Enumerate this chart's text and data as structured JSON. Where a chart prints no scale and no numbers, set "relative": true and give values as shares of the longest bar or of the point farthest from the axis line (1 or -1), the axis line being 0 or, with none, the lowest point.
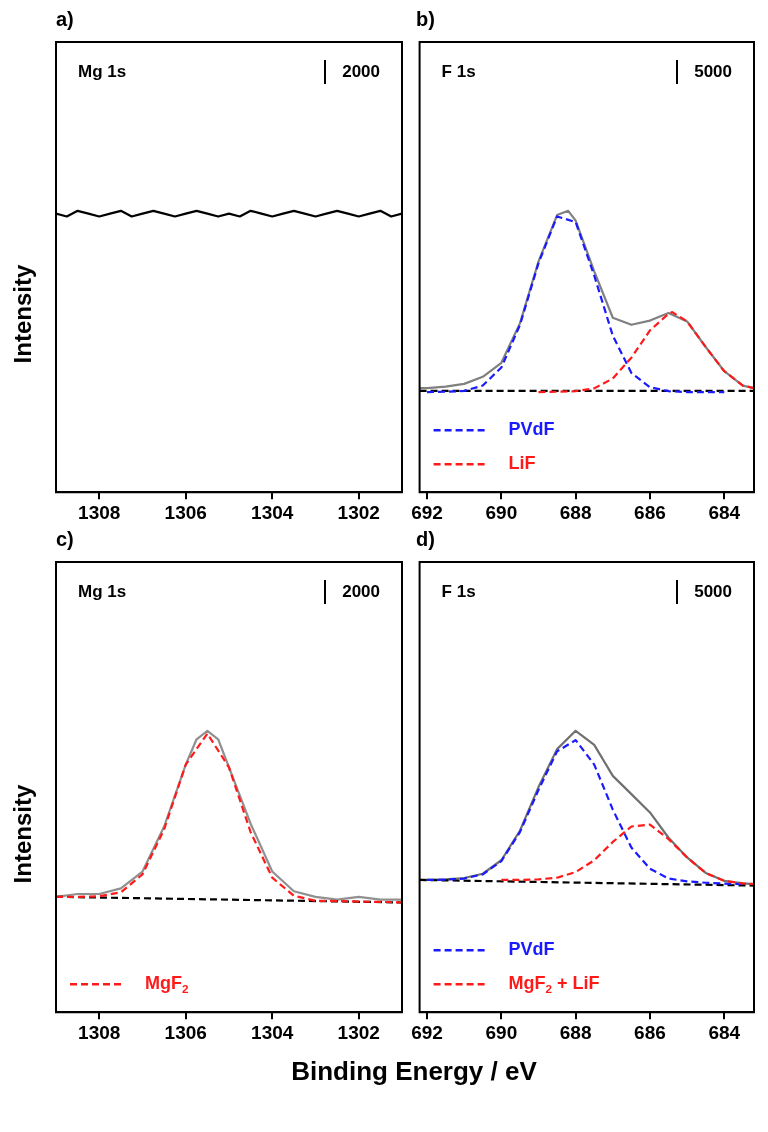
{
  "chart_data": [
    {
      "type": "line",
      "title": "a)",
      "ylabel": "Intensity",
      "annotations": [
        "Mg 1s",
        "2000"
      ],
      "relative": true,
      "xlim": [
        1309,
        1301
      ],
      "xticks": [
        1308,
        1306,
        1304,
        1302
      ],
      "line_style": "solid",
      "series": [
        {
          "color": "#000000",
          "x": [
            1309,
            1308.75,
            1308.5,
            1308.25,
            1308,
            1307.75,
            1307.5,
            1307.25,
            1307,
            1306.75,
            1306.5,
            1306.25,
            1306,
            1305.75,
            1305.5,
            1305.25,
            1305,
            1304.75,
            1304.5,
            1304.25,
            1304,
            1303.75,
            1303.5,
            1303.25,
            1303,
            1302.75,
            1302.5,
            1302.25,
            1302,
            1301.75,
            1301.5,
            1301.25,
            1301
          ],
          "values": [
            0.99,
            0.98,
            1.0,
            0.99,
            0.98,
            0.99,
            1.0,
            0.98,
            0.99,
            1.0,
            0.99,
            0.98,
            0.99,
            1.0,
            0.99,
            0.98,
            0.99,
            0.98,
            1.0,
            0.99,
            0.98,
            0.99,
            1.0,
            0.99,
            0.98,
            0.99,
            1.0,
            0.99,
            0.98,
            0.99,
            1.0,
            0.98,
            0.99
          ]
        }
      ]
    },
    {
      "type": "line",
      "title": "b)",
      "annotations": [
        "F 1s",
        "5000"
      ],
      "relative": true,
      "xlim": [
        692.2,
        683.2
      ],
      "xticks": [
        692,
        690,
        688,
        686,
        684
      ],
      "legend": "bottom left",
      "line_style": "solid",
      "series": [
        {
          "color": "#808080",
          "x": [
            692.2,
            692,
            691.5,
            691,
            690.5,
            690,
            689.5,
            689,
            688.5,
            688.2,
            688,
            687.5,
            687,
            686.5,
            686,
            685.5,
            685,
            684.5,
            684,
            683.5,
            683.2
          ],
          "values": [
            0.37,
            0.37,
            0.375,
            0.385,
            0.41,
            0.46,
            0.6,
            0.82,
            0.985,
            1.0,
            0.965,
            0.785,
            0.62,
            0.595,
            0.61,
            0.637,
            0.607,
            0.516,
            0.43,
            0.379,
            0.37
          ]
        },
        {
          "color": "#000000",
          "line_style": "dashed",
          "x": [
            692.2,
            683.2
          ],
          "values": [
            0.36,
            0.36
          ]
        },
        {
          "name": "PVdF",
          "color": "#1a1aff",
          "line_style": "dashed",
          "x": [
            692,
            691.5,
            691,
            690.5,
            690,
            689.5,
            689,
            688.5,
            688,
            687.5,
            687,
            686.5,
            686,
            685.5,
            685,
            684.5,
            684
          ],
          "values": [
            0.356,
            0.357,
            0.36,
            0.379,
            0.443,
            0.594,
            0.814,
            0.98,
            0.96,
            0.77,
            0.556,
            0.424,
            0.373,
            0.359,
            0.356,
            0.356,
            0.356
          ]
        },
        {
          "name": "LiF",
          "color": "#ff1a1a",
          "line_style": "dashed",
          "x": [
            689,
            688.5,
            688,
            687.5,
            687,
            686.5,
            686,
            685.5,
            685.4,
            685,
            684.5,
            684,
            683.5,
            683.2
          ],
          "values": [
            0.356,
            0.357,
            0.359,
            0.369,
            0.404,
            0.478,
            0.575,
            0.634,
            0.64,
            0.607,
            0.516,
            0.43,
            0.379,
            0.37
          ]
        }
      ]
    },
    {
      "type": "line",
      "title": "c)",
      "ylabel": "Intensity",
      "xlabel": "Binding Energy / eV",
      "annotations": [
        "Mg 1s",
        "2000"
      ],
      "relative": true,
      "xlim": [
        1309,
        1301
      ],
      "xticks": [
        1308,
        1306,
        1304,
        1302
      ],
      "legend": "bottom left",
      "line_style": "solid",
      "series": [
        {
          "color": "#909090",
          "x": [
            1309,
            1308.5,
            1308,
            1307.5,
            1307,
            1306.5,
            1306,
            1305.75,
            1305.5,
            1305.25,
            1305,
            1304.5,
            1304,
            1303.5,
            1303,
            1302.5,
            1302,
            1301.5,
            1301
          ],
          "values": [
            0.41,
            0.42,
            0.42,
            0.44,
            0.5,
            0.66,
            0.88,
            0.97,
            1.0,
            0.97,
            0.87,
            0.67,
            0.5,
            0.43,
            0.41,
            0.4,
            0.41,
            0.4,
            0.4
          ]
        },
        {
          "color": "#000000",
          "line_style": "dashed",
          "x": [
            1309,
            1301
          ],
          "values": [
            0.41,
            0.39
          ]
        },
        {
          "name": "MgF$_{2}$",
          "color": "#ff1a1a",
          "line_style": "dashed",
          "x": [
            1309,
            1308.5,
            1308,
            1307.5,
            1307,
            1306.5,
            1306,
            1305.5,
            1305,
            1304.5,
            1304,
            1303.5,
            1303,
            1302.5,
            1302,
            1301.5,
            1301
          ],
          "values": [
            0.41,
            0.41,
            0.412,
            0.426,
            0.49,
            0.65,
            0.88,
            0.99,
            0.87,
            0.64,
            0.478,
            0.414,
            0.396,
            0.395,
            0.393,
            0.392,
            0.39
          ]
        }
      ]
    },
    {
      "type": "line",
      "title": "d)",
      "annotations": [
        "F 1s",
        "5000"
      ],
      "relative": true,
      "xlim": [
        692.2,
        683.2
      ],
      "xticks": [
        692,
        690,
        688,
        686,
        684
      ],
      "legend": "bottom left",
      "line_style": "solid",
      "series": [
        {
          "color": "#707070",
          "x": [
            692.2,
            692,
            691.5,
            691,
            690.5,
            690,
            689.5,
            689,
            688.5,
            688,
            687.5,
            687,
            686.5,
            686,
            685.5,
            685,
            684.5,
            684,
            683.5,
            683.2
          ],
          "values": [
            0.47,
            0.47,
            0.472,
            0.477,
            0.492,
            0.54,
            0.645,
            0.8,
            0.935,
            1.0,
            0.95,
            0.84,
            0.775,
            0.71,
            0.62,
            0.55,
            0.495,
            0.467,
            0.458,
            0.455
          ]
        },
        {
          "color": "#000000",
          "line_style": "dashed",
          "x": [
            692.2,
            683.2
          ],
          "values": [
            0.47,
            0.45
          ]
        },
        {
          "name": "PVdF",
          "color": "#1a1aff",
          "line_style": "dashed",
          "x": [
            692,
            691.5,
            691,
            690.5,
            690,
            689.5,
            689,
            688.5,
            688,
            687.5,
            687,
            686.5,
            686,
            685.5,
            685,
            684.5,
            684,
            683.5
          ],
          "values": [
            0.47,
            0.471,
            0.475,
            0.49,
            0.537,
            0.64,
            0.79,
            0.927,
            0.967,
            0.88,
            0.72,
            0.585,
            0.51,
            0.475,
            0.465,
            0.46,
            0.457,
            0.455
          ]
        },
        {
          "name": "MgF$_{2}$ + LiF",
          "color": "#ff1a1a",
          "line_style": "dashed",
          "x": [
            690,
            689.5,
            689,
            688.5,
            688,
            687.5,
            687,
            686.5,
            686,
            685.5,
            685,
            684.5,
            684,
            683.5,
            683.2
          ],
          "values": [
            0.47,
            0.47,
            0.472,
            0.478,
            0.498,
            0.54,
            0.605,
            0.66,
            0.667,
            0.615,
            0.55,
            0.495,
            0.467,
            0.458,
            0.455
          ]
        }
      ]
    }
  ]
}
